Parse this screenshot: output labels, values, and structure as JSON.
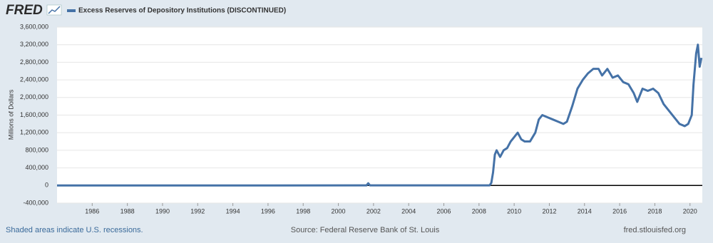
{
  "logo": "FRED",
  "chart_data": {
    "type": "line",
    "series": [
      {
        "name": "Excess Reserves of Depository Institutions (DISCONTINUED)",
        "color": "#4572a7",
        "values": [
          1000,
          1000,
          2000,
          50000,
          2000,
          2000,
          60000,
          300000,
          700000,
          800000,
          650000,
          800000,
          850000,
          1000000,
          1100000,
          1200000,
          1050000,
          1000000,
          1000000,
          1200000,
          1500000,
          1600000,
          1550000,
          1500000,
          1450000,
          1400000,
          1450000,
          1800000,
          2200000,
          2400000,
          2550000,
          2650000,
          2650000,
          2500000,
          2650000,
          2450000,
          2500000,
          2350000,
          2300000,
          2100000,
          1900000,
          2200000,
          2150000,
          2200000,
          2100000,
          1850000,
          1700000,
          1550000,
          1400000,
          1350000,
          1400000,
          1600000,
          2300000,
          3000000,
          3200000,
          2700000,
          2900000
        ]
      }
    ],
    "x": [
      1984.0,
      1990.0,
      2001.6,
      2001.7,
      2001.8,
      2008.6,
      2008.7,
      2008.8,
      2008.9,
      2009.0,
      2009.2,
      2009.4,
      2009.6,
      2009.8,
      2010.0,
      2010.2,
      2010.4,
      2010.6,
      2010.9,
      2011.2,
      2011.4,
      2011.6,
      2011.9,
      2012.2,
      2012.5,
      2012.8,
      2013.0,
      2013.3,
      2013.6,
      2013.9,
      2014.2,
      2014.5,
      2014.8,
      2015.0,
      2015.3,
      2015.6,
      2015.9,
      2016.2,
      2016.5,
      2016.8,
      2017.0,
      2017.3,
      2017.6,
      2017.9,
      2018.2,
      2018.5,
      2018.8,
      2019.1,
      2019.4,
      2019.7,
      2019.9,
      2020.1,
      2020.2,
      2020.35,
      2020.45,
      2020.55,
      2020.65
    ],
    "ylabel": "Millions of Dollars",
    "xlim": [
      1984.0,
      2020.7
    ],
    "ylim": [
      -400000,
      3600000
    ],
    "xticks": [
      1986,
      1988,
      1990,
      1992,
      1994,
      1996,
      1998,
      2000,
      2002,
      2004,
      2006,
      2008,
      2010,
      2012,
      2014,
      2016,
      2018,
      2020
    ],
    "yticks": [
      {
        "value": -400000,
        "label": "-400,000"
      },
      0,
      {
        "value": 400000,
        "label": "400,000"
      },
      {
        "value": 800000,
        "label": "800,000"
      },
      {
        "value": 1200000,
        "label": "1,200,000"
      },
      {
        "value": 1600000,
        "label": "1,600,000"
      },
      {
        "value": 2000000,
        "label": "2,000,000"
      },
      {
        "value": 2400000,
        "label": "2,400,000"
      },
      {
        "value": 2800000,
        "label": "2,800,000"
      },
      {
        "value": 3200000,
        "label": "3,200,000"
      },
      {
        "value": 3600000,
        "label": "3,600,000"
      }
    ],
    "grid": true
  },
  "footer": {
    "note": "Shaded areas indicate U.S. recessions.",
    "source": "Source: Federal Reserve Bank of St. Louis",
    "url": "fred.stlouisfed.org"
  }
}
